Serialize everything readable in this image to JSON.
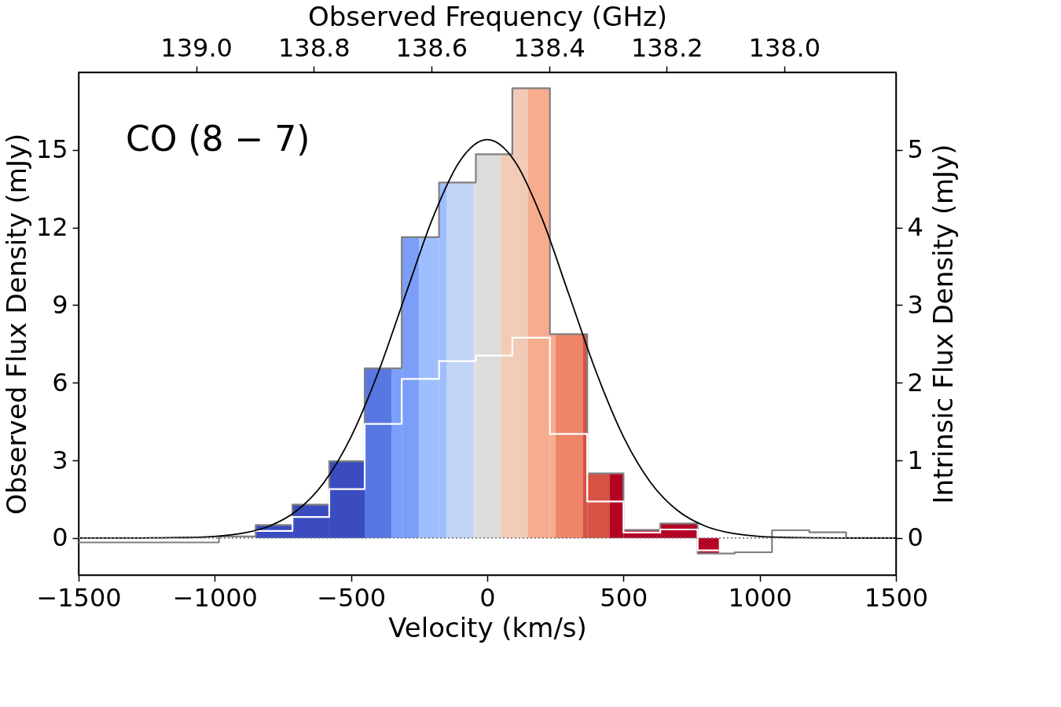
{
  "chart_data": {
    "type": "step",
    "xlabel": "Velocity (km/s)",
    "ylabel": "Observed Flux Density (mJy)",
    "y2label": "Intrinsic Flux Density (mJy)",
    "x2label": "Observed Frequency (GHz)",
    "annotations": [
      "CO (8 − 7)"
    ],
    "xlim": [
      -1500,
      1500
    ],
    "xticks": [
      -1500,
      -1000,
      -500,
      0,
      500,
      1000,
      1500
    ],
    "ylim": [
      -1.43,
      18
    ],
    "yticks": [
      0,
      3,
      6,
      9,
      12,
      15
    ],
    "y2lim": [
      -0.477,
      6
    ],
    "y2ticks": [
      0,
      1,
      2,
      3,
      4,
      5
    ],
    "x2lim": [
      139.2,
      137.81
    ],
    "x2ticks": [
      {
        "value": 139.0,
        "label": "139.0"
      },
      {
        "value": 138.8,
        "label": "138.8"
      },
      {
        "value": 138.6,
        "label": "138.6"
      },
      {
        "value": 138.4,
        "label": "138.4"
      },
      {
        "value": 138.2,
        "label": "138.2"
      },
      {
        "value": 138.0,
        "label": "138.0"
      }
    ],
    "ref_lines": [
      {
        "axis": "y",
        "value": 0,
        "color": "#808080",
        "line_style": "dotted"
      }
    ],
    "series": [
      {
        "type": "histogram",
        "bins": [
          -850,
          -715,
          -580,
          -450,
          -350,
          -314,
          -250,
          -177,
          -150,
          -50,
          -42,
          50,
          92,
          150,
          230,
          250,
          350,
          367,
          450,
          500,
          635,
          772,
          850
        ],
        "values": [
          0.5,
          1.29,
          2.97,
          6.56,
          6.56,
          11.63,
          11.63,
          13.74,
          13.74,
          13.74,
          14.83,
          14.83,
          17.38,
          17.38,
          7.88,
          7.88,
          7.88,
          2.5,
          2.5,
          0.31,
          0.56,
          -0.6
        ],
        "colors": [
          "#3b4cc0",
          "#3b4cc0",
          "#3b4cc0",
          "#5977e3",
          "#7b9ff9",
          "#7b9ff9",
          "#9ebeff",
          "#9ebeff",
          "#c0d4f5",
          "#dddcdc",
          "#dddcdc",
          "#f2cbb7",
          "#f2cbb7",
          "#f7ac8e",
          "#f7ac8e",
          "#ee8468",
          "#d65244",
          "#d65244",
          "#b40426",
          "#b40426",
          "#b40426",
          "#b40426"
        ]
      },
      {
        "color": "#808080",
        "x": [
          -1500,
          -985,
          -850,
          -715,
          -580,
          -450,
          -314,
          -177,
          -42,
          92,
          230,
          367,
          500,
          635,
          772,
          908,
          1045,
          1182,
          1317,
          1500
        ],
        "values": [
          -0.17,
          0.06,
          0.5,
          1.29,
          2.97,
          6.56,
          11.63,
          13.74,
          14.83,
          17.38,
          7.88,
          2.5,
          0.31,
          0.56,
          -0.6,
          -0.55,
          0.3,
          0.22,
          0.0,
          0.0
        ]
      },
      {
        "color": "#ffffff",
        "axis": "y2",
        "x": [
          -850,
          -715,
          -580,
          -450,
          -314,
          -177,
          -42,
          92,
          230,
          367,
          500,
          635,
          772,
          850
        ],
        "values": [
          0.09,
          0.27,
          0.63,
          1.47,
          2.05,
          2.28,
          2.35,
          2.58,
          1.34,
          0.47,
          0.07,
          0.11,
          -0.16,
          -0.16
        ]
      },
      {
        "type": "line",
        "color": "#000000",
        "x": [
          -1500,
          -1400,
          -1300,
          -1200,
          -1100,
          -1000,
          -900,
          -800,
          -700,
          -600,
          -500,
          -400,
          -300,
          -200,
          -100,
          0,
          100,
          200,
          300,
          400,
          500,
          600,
          700,
          800,
          900,
          1000,
          1100,
          1200,
          1300,
          1400,
          1500
        ],
        "values": [
          0,
          0,
          0,
          0.01,
          0.02,
          0.06,
          0.18,
          0.46,
          1.05,
          2.14,
          3.91,
          6.41,
          9.4,
          12.37,
          14.58,
          15.4,
          14.58,
          12.37,
          9.4,
          6.41,
          3.91,
          2.14,
          1.05,
          0.46,
          0.18,
          0.06,
          0.02,
          0.01,
          0,
          0,
          0
        ]
      }
    ]
  }
}
